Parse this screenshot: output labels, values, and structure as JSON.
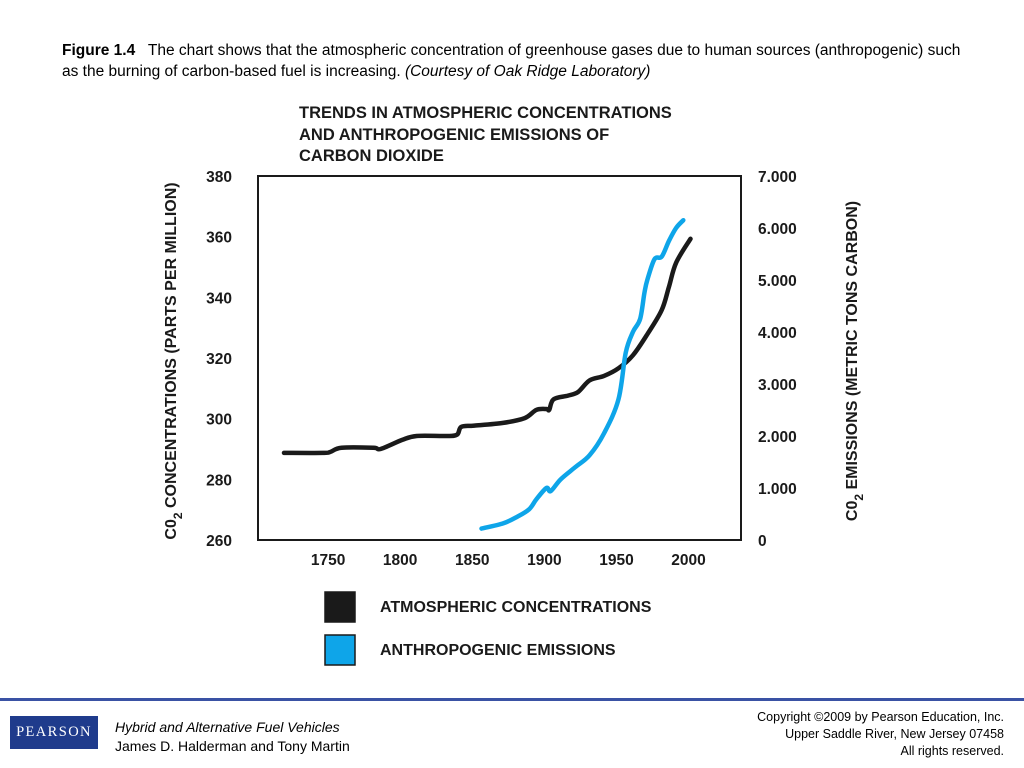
{
  "caption": {
    "label": "Figure 1.4",
    "text": "The chart shows that the atmospheric concentration of greenhouse gases due to human sources (anthropogenic) such as the burning of carbon-based fuel is increasing.",
    "credit": "(Courtesy of Oak Ridge Laboratory)"
  },
  "colors": {
    "concentration": "#1a1a1a",
    "emissions": "#0ea5e9",
    "rule": "#3a52a4",
    "logo_bg": "#1f3b8c"
  },
  "chart_data": {
    "type": "line",
    "title_lines": [
      "TRENDS IN ATMOSPHERIC CONCENTRATIONS",
      "AND ANTHROPOGENIC EMISSIONS OF",
      "CARBON DIOXIDE"
    ],
    "x_ticks": [
      "1750",
      "1800",
      "1850",
      "1900",
      "1950",
      "2000"
    ],
    "x_range": [
      1700,
      2035
    ],
    "y_left": {
      "label_main": "C0",
      "label_sub": "2",
      "label_rest": "CONCENTRATIONS (PARTS PER MILLION)",
      "range": [
        260,
        380
      ],
      "ticks": [
        "260",
        "280",
        "300",
        "320",
        "340",
        "360",
        "380"
      ]
    },
    "y_right": {
      "label_main": "C0",
      "label_sub": "2",
      "label_rest": "EMISSIONS (METRIC TONS CARBON)",
      "range": [
        0,
        7
      ],
      "ticks": [
        "0",
        "1.000",
        "2.000",
        "3.000",
        "4.000",
        "5.000",
        "6.000",
        "7.000"
      ]
    },
    "series": [
      {
        "name": "ATMOSPHERIC CONCENTRATIONS",
        "axis": "left",
        "x": [
          1718,
          1745,
          1750,
          1758,
          1780,
          1785,
          1800,
          1810,
          1830,
          1838,
          1841,
          1850,
          1870,
          1885,
          1893,
          1900,
          1902,
          1905,
          1915,
          1922,
          1930,
          1940,
          1950,
          1960,
          1970,
          1980,
          1985,
          1990,
          2000
        ],
        "y": [
          288.7,
          288.7,
          289.0,
          290.4,
          290.4,
          290.0,
          293.0,
          294.3,
          294.3,
          294.7,
          297.3,
          297.7,
          298.6,
          300.2,
          302.9,
          303.2,
          302.9,
          306.4,
          307.6,
          308.8,
          312.6,
          314.1,
          316.6,
          320.9,
          327.8,
          335.8,
          343.4,
          351.4,
          359.3
        ]
      },
      {
        "name": "ANTHROPOGENIC EMISSIONS",
        "axis": "right",
        "x": [
          1855,
          1870,
          1880,
          1888,
          1893,
          1900,
          1903,
          1910,
          1920,
          1930,
          1940,
          1950,
          1955,
          1960,
          1965,
          1968,
          1970,
          1975,
          1980,
          1985,
          1990,
          1995
        ],
        "y": [
          0.22,
          0.32,
          0.45,
          0.59,
          0.78,
          1.0,
          0.94,
          1.17,
          1.4,
          1.63,
          2.05,
          2.7,
          3.6,
          4.0,
          4.25,
          4.75,
          5.0,
          5.4,
          5.45,
          5.75,
          6.0,
          6.15
        ]
      }
    ],
    "legend": [
      {
        "label": "ATMOSPHERIC CONCENTRATIONS",
        "series": 0
      },
      {
        "label": "ANTHROPOGENIC EMISSIONS",
        "series": 1
      }
    ],
    "legend_position": "bottom",
    "grid": false
  },
  "footer": {
    "logo_text": "PEARSON",
    "book_title": "Hybrid and Alternative Fuel Vehicles",
    "authors": "James D. Halderman and Tony Martin",
    "copyright_lines": [
      "Copyright ©2009 by Pearson Education, Inc.",
      "Upper Saddle River, New Jersey 07458",
      "All rights reserved."
    ]
  }
}
